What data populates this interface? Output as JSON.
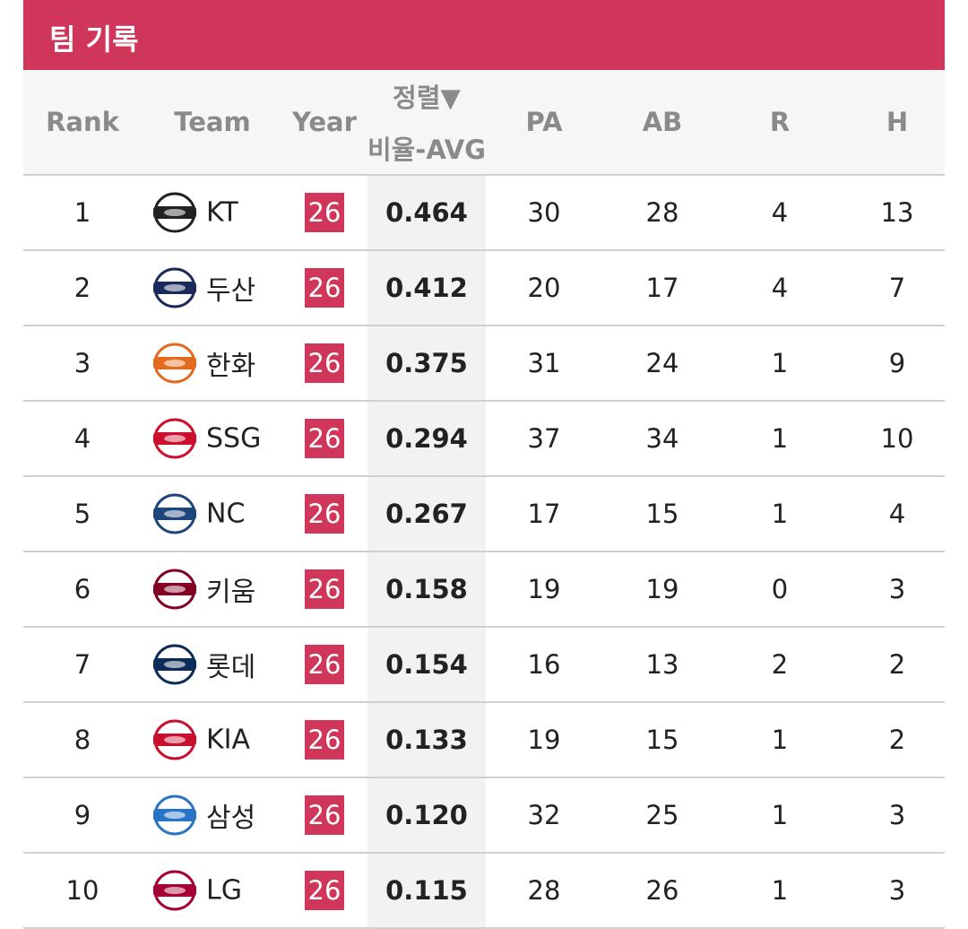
{
  "header": {
    "title": "팀 기록"
  },
  "columns": {
    "rank": "Rank",
    "team": "Team",
    "year": "Year",
    "avg_sort": "정렬▼",
    "avg": "비율-AVG",
    "pa": "PA",
    "ab": "AB",
    "r": "R",
    "h": "H"
  },
  "table": {
    "rows": [
      {
        "rank": 1,
        "team": "KT",
        "year": 26,
        "avg": "0.464",
        "pa": 30,
        "ab": 28,
        "r": 4,
        "h": 13
      },
      {
        "rank": 2,
        "team": "두산",
        "year": 26,
        "avg": "0.412",
        "pa": 20,
        "ab": 17,
        "r": 4,
        "h": 7
      },
      {
        "rank": 3,
        "team": "한화",
        "year": 26,
        "avg": "0.375",
        "pa": 31,
        "ab": 24,
        "r": 1,
        "h": 9
      },
      {
        "rank": 4,
        "team": "SSG",
        "year": 26,
        "avg": "0.294",
        "pa": 37,
        "ab": 34,
        "r": 1,
        "h": 10
      },
      {
        "rank": 5,
        "team": "NC",
        "year": 26,
        "avg": "0.267",
        "pa": 17,
        "ab": 15,
        "r": 1,
        "h": 4
      },
      {
        "rank": 6,
        "team": "키움",
        "year": 26,
        "avg": "0.158",
        "pa": 19,
        "ab": 19,
        "r": 0,
        "h": 3
      },
      {
        "rank": 7,
        "team": "롯데",
        "year": 26,
        "avg": "0.154",
        "pa": 16,
        "ab": 13,
        "r": 2,
        "h": 2
      },
      {
        "rank": 8,
        "team": "KIA",
        "year": 26,
        "avg": "0.133",
        "pa": 19,
        "ab": 15,
        "r": 1,
        "h": 2
      },
      {
        "rank": 9,
        "team": "삼성",
        "year": 26,
        "avg": "0.120",
        "pa": 32,
        "ab": 25,
        "r": 1,
        "h": 3
      },
      {
        "rank": 10,
        "team": "LG",
        "year": 26,
        "avg": "0.115",
        "pa": 28,
        "ab": 26,
        "r": 1,
        "h": 3
      }
    ]
  }
}
